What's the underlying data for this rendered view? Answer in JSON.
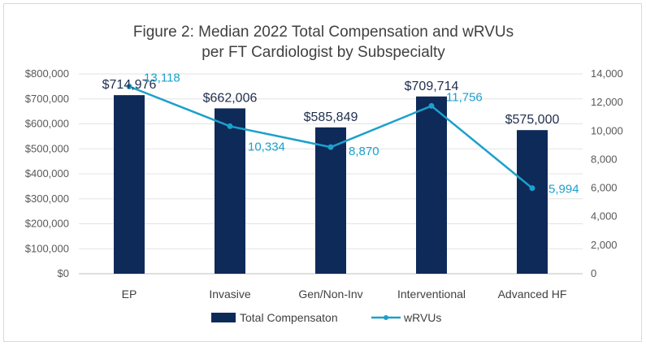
{
  "chart_data": {
    "type": "bar",
    "title": "Figure 2: Median 2022 Total Compensation and wRVUs",
    "subtitle": "per FT Cardiologist by Subspecialty",
    "categories": [
      "EP",
      "Invasive",
      "Gen/Non-Inv",
      "Interventional",
      "Advanced HF"
    ],
    "series": [
      {
        "name": "Total Compensaton",
        "kind": "bar",
        "axis": "left",
        "values": [
          714976,
          662006,
          585849,
          709714,
          575000
        ],
        "labels": [
          "$714,976",
          "$662,006",
          "$585,849",
          "$709,714",
          "$575,000"
        ],
        "color": "#0e2a58"
      },
      {
        "name": "wRVUs",
        "kind": "line",
        "axis": "right",
        "values": [
          13118,
          10334,
          8870,
          11756,
          5994
        ],
        "labels": [
          "13,118",
          "10,334",
          "8,870",
          "11,756",
          "5,994"
        ],
        "color": "#1ca0cc"
      }
    ],
    "y_left": {
      "min": 0,
      "max": 800000,
      "step": 100000,
      "ticks": [
        "$0",
        "$100,000",
        "$200,000",
        "$300,000",
        "$400,000",
        "$500,000",
        "$600,000",
        "$700,000",
        "$800,000"
      ]
    },
    "y_right": {
      "min": 0,
      "max": 14000,
      "step": 2000,
      "ticks": [
        "0",
        "2,000",
        "4,000",
        "6,000",
        "8,000",
        "10,000",
        "12,000",
        "14,000"
      ]
    },
    "grid": true,
    "legend": "bottom"
  }
}
